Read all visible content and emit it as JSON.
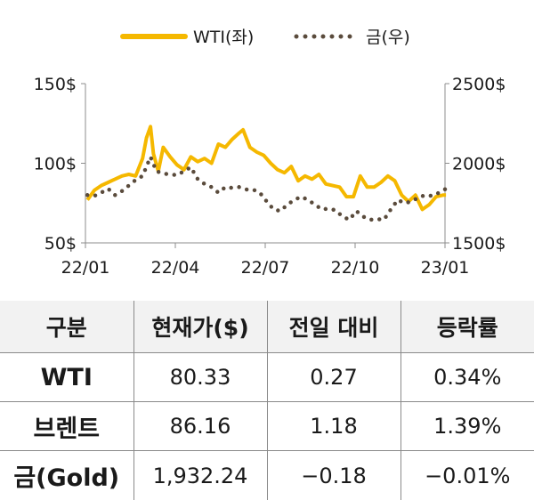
{
  "chart_data": {
    "type": "line",
    "legend_position": "top-center",
    "grid": false,
    "x_ticks": [
      "22/01",
      "22/04",
      "22/07",
      "22/10",
      "23/01"
    ],
    "y_left": {
      "ticks": [
        "150$",
        "100$",
        "50$"
      ],
      "range": [
        50,
        150
      ]
    },
    "y_right": {
      "ticks": [
        "2500$",
        "2000$",
        "1500$"
      ],
      "range": [
        1500,
        2500
      ]
    },
    "series": [
      {
        "name": "WTI(좌)",
        "axis": "left",
        "style": "solid",
        "color": "#f5b800",
        "points": [
          [
            "2022-01-03",
            77
          ],
          [
            "2022-01-10",
            83
          ],
          [
            "2022-01-17",
            86
          ],
          [
            "2022-01-24",
            88
          ],
          [
            "2022-01-31",
            90
          ],
          [
            "2022-02-07",
            92
          ],
          [
            "2022-02-14",
            93
          ],
          [
            "2022-02-21",
            92
          ],
          [
            "2022-02-28",
            103
          ],
          [
            "2022-03-04",
            116
          ],
          [
            "2022-03-08",
            123
          ],
          [
            "2022-03-11",
            106
          ],
          [
            "2022-03-16",
            95
          ],
          [
            "2022-03-21",
            110
          ],
          [
            "2022-03-28",
            104
          ],
          [
            "2022-04-04",
            99
          ],
          [
            "2022-04-11",
            96
          ],
          [
            "2022-04-18",
            104
          ],
          [
            "2022-04-25",
            101
          ],
          [
            "2022-05-02",
            103
          ],
          [
            "2022-05-09",
            100
          ],
          [
            "2022-05-16",
            112
          ],
          [
            "2022-05-23",
            110
          ],
          [
            "2022-05-30",
            115
          ],
          [
            "2022-06-06",
            119
          ],
          [
            "2022-06-10",
            121
          ],
          [
            "2022-06-17",
            110
          ],
          [
            "2022-06-24",
            107
          ],
          [
            "2022-07-01",
            105
          ],
          [
            "2022-07-08",
            100
          ],
          [
            "2022-07-15",
            96
          ],
          [
            "2022-07-22",
            94
          ],
          [
            "2022-07-29",
            98
          ],
          [
            "2022-08-05",
            89
          ],
          [
            "2022-08-12",
            92
          ],
          [
            "2022-08-19",
            90
          ],
          [
            "2022-08-26",
            93
          ],
          [
            "2022-09-02",
            87
          ],
          [
            "2022-09-09",
            86
          ],
          [
            "2022-09-16",
            85
          ],
          [
            "2022-09-23",
            79
          ],
          [
            "2022-09-30",
            79
          ],
          [
            "2022-10-07",
            92
          ],
          [
            "2022-10-14",
            85
          ],
          [
            "2022-10-21",
            85
          ],
          [
            "2022-10-28",
            88
          ],
          [
            "2022-11-04",
            92
          ],
          [
            "2022-11-11",
            89
          ],
          [
            "2022-11-18",
            80
          ],
          [
            "2022-11-25",
            76
          ],
          [
            "2022-12-02",
            80
          ],
          [
            "2022-12-09",
            71
          ],
          [
            "2022-12-16",
            74
          ],
          [
            "2022-12-23",
            79
          ],
          [
            "2022-12-30",
            80
          ],
          [
            "2023-01-02",
            80
          ]
        ]
      },
      {
        "name": "금(우)",
        "axis": "right",
        "style": "dotted",
        "color": "#5a4b3c",
        "points": [
          [
            "2022-01-03",
            1800
          ],
          [
            "2022-01-10",
            1795
          ],
          [
            "2022-01-17",
            1815
          ],
          [
            "2022-01-24",
            1840
          ],
          [
            "2022-01-31",
            1800
          ],
          [
            "2022-02-07",
            1825
          ],
          [
            "2022-02-14",
            1860
          ],
          [
            "2022-02-21",
            1895
          ],
          [
            "2022-02-28",
            1920
          ],
          [
            "2022-03-08",
            2040
          ],
          [
            "2022-03-14",
            1950
          ],
          [
            "2022-03-21",
            1935
          ],
          [
            "2022-03-28",
            1930
          ],
          [
            "2022-04-04",
            1925
          ],
          [
            "2022-04-11",
            1950
          ],
          [
            "2022-04-18",
            1975
          ],
          [
            "2022-04-25",
            1900
          ],
          [
            "2022-05-02",
            1870
          ],
          [
            "2022-05-09",
            1850
          ],
          [
            "2022-05-16",
            1815
          ],
          [
            "2022-05-23",
            1850
          ],
          [
            "2022-05-30",
            1845
          ],
          [
            "2022-06-06",
            1850
          ],
          [
            "2022-06-13",
            1835
          ],
          [
            "2022-06-20",
            1835
          ],
          [
            "2022-06-27",
            1815
          ],
          [
            "2022-07-04",
            1760
          ],
          [
            "2022-07-11",
            1710
          ],
          [
            "2022-07-18",
            1700
          ],
          [
            "2022-07-25",
            1740
          ],
          [
            "2022-08-01",
            1770
          ],
          [
            "2022-08-08",
            1790
          ],
          [
            "2022-08-15",
            1770
          ],
          [
            "2022-08-22",
            1740
          ],
          [
            "2022-08-29",
            1710
          ],
          [
            "2022-09-05",
            1715
          ],
          [
            "2022-09-12",
            1705
          ],
          [
            "2022-09-19",
            1665
          ],
          [
            "2022-09-26",
            1645
          ],
          [
            "2022-10-03",
            1700
          ],
          [
            "2022-10-10",
            1665
          ],
          [
            "2022-10-17",
            1645
          ],
          [
            "2022-10-24",
            1650
          ],
          [
            "2022-10-31",
            1645
          ],
          [
            "2022-11-07",
            1710
          ],
          [
            "2022-11-14",
            1770
          ],
          [
            "2022-11-21",
            1750
          ],
          [
            "2022-11-28",
            1760
          ],
          [
            "2022-12-05",
            1785
          ],
          [
            "2022-12-12",
            1800
          ],
          [
            "2022-12-19",
            1795
          ],
          [
            "2022-12-26",
            1815
          ],
          [
            "2023-01-02",
            1840
          ],
          [
            "2023-01-04",
            1860
          ]
        ]
      }
    ]
  },
  "table": {
    "headers": [
      "구분",
      "현재가($)",
      "전일 대비",
      "등락률"
    ],
    "rows": [
      [
        "WTI",
        "80.33",
        "0.27",
        "0.34%"
      ],
      [
        "브렌트",
        "86.16",
        "1.18",
        "1.39%"
      ],
      [
        "금(Gold)",
        "1,932.24",
        "−0.18",
        "−0.01%"
      ]
    ]
  }
}
